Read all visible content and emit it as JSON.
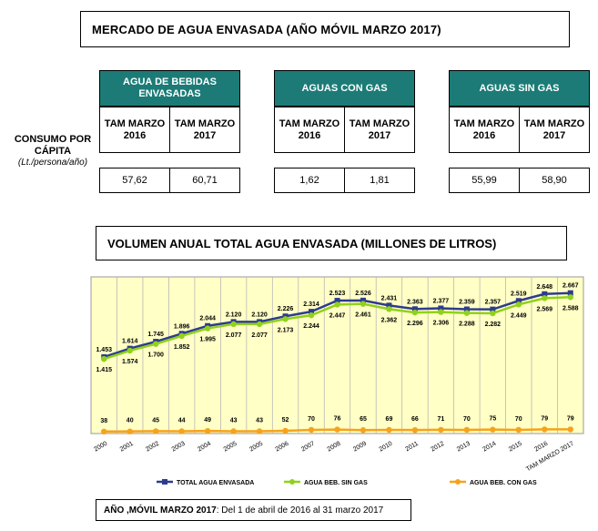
{
  "header": {
    "title": "MERCADO DE AGUA ENVASADA  (AÑO MÓVIL MARZO 2017)"
  },
  "consumo": {
    "label": "CONSUMO POR CÁPITA",
    "unit": "(Lt./persona/año)",
    "col_2016": "TAM MARZO 2016",
    "col_2017": "TAM MARZO 2017",
    "groups": [
      {
        "name": "AGUA DE BEBIDAS ENVASADAS",
        "v2016": "57,62",
        "v2017": "60,71"
      },
      {
        "name": "AGUAS CON GAS",
        "v2016": "1,62",
        "v2017": "1,81"
      },
      {
        "name": "AGUAS SIN GAS",
        "v2016": "55,99",
        "v2017": "58,90"
      }
    ]
  },
  "chart_title": "VOLUMEN ANUAL TOTAL AGUA ENVASADA (MILLONES DE LITROS)",
  "footer": {
    "bold": "AÑO ,MÓVIL MARZO 2017",
    "text": ": Del 1 de abril de 2016 al 31 marzo 2017"
  },
  "colors": {
    "teal": "#1c7b76",
    "total": "#2e3b8f",
    "sin_gas": "#8fd21c",
    "con_gas": "#f7a21b",
    "plot_bg": "#ffffc6"
  },
  "chart_data": {
    "type": "line",
    "x": [
      "2000",
      "2001",
      "2002",
      "2003",
      "2004",
      "2005",
      "2005",
      "2006",
      "2007",
      "2008",
      "2009",
      "2010",
      "2011",
      "2012",
      "2013",
      "2014",
      "2015",
      "2016",
      "TAM MARZO 2017"
    ],
    "ylim": [
      0,
      2800
    ],
    "grid": "vertical",
    "legend_position": "bottom",
    "series": [
      {
        "name": "TOTAL AGUA ENVASADA",
        "values": [
          1453,
          1614,
          1745,
          1896,
          2044,
          2120,
          2120,
          2226,
          2314,
          2523,
          2526,
          2431,
          2363,
          2377,
          2359,
          2357,
          2519,
          2648,
          2667
        ],
        "labels": [
          "1.453",
          "1.614",
          "1.745",
          "1.896",
          "2.044",
          "2.120",
          "2.120",
          "2.226",
          "2.314",
          "2.523",
          "2.526",
          "2.431",
          "2.363",
          "2.377",
          "2.359",
          "2.357",
          "2.519",
          "2.648",
          "2.667"
        ]
      },
      {
        "name": "AGUA BEB. SIN GAS",
        "values": [
          1415,
          1574,
          1700,
          1852,
          1995,
          2077,
          2077,
          2173,
          2244,
          2447,
          2461,
          2362,
          2296,
          2306,
          2288,
          2282,
          2449,
          2569,
          2588
        ],
        "labels": [
          "1.415",
          "1.574",
          "1.700",
          "1.852",
          "1.995",
          "2.077",
          "2.077",
          "2.173",
          "2.244",
          "2.447",
          "2.461",
          "2.362",
          "2.296",
          "2.306",
          "2.288",
          "2.282",
          "2.449",
          "2.569",
          "2.588"
        ]
      },
      {
        "name": "AGUA BEB. CON GAS",
        "values": [
          38,
          40,
          45,
          44,
          49,
          43,
          43,
          52,
          70,
          76,
          65,
          69,
          66,
          71,
          70,
          75,
          70,
          79,
          79
        ],
        "labels": [
          "38",
          "40",
          "45",
          "44",
          "49",
          "43",
          "43",
          "52",
          "70",
          "76",
          "65",
          "69",
          "66",
          "71",
          "70",
          "75",
          "70",
          "79",
          "79"
        ]
      }
    ]
  }
}
